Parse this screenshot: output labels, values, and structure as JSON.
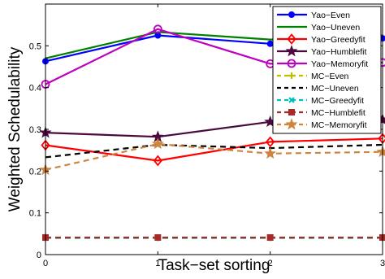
{
  "chart_data": {
    "type": "line",
    "xlabel": "Task−set sorting",
    "ylabel": "Weighted Schedulability",
    "x": [
      0,
      1,
      2,
      3
    ],
    "xlim": [
      0,
      3
    ],
    "ylim": [
      0,
      0.6
    ],
    "x_ticks": [
      "0",
      "1",
      "2",
      "3"
    ],
    "y_ticks": [
      {
        "v": 0,
        "label": "0"
      },
      {
        "v": 0.1,
        "label": "0.1"
      },
      {
        "v": 0.2,
        "label": "0.2"
      },
      {
        "v": 0.3,
        "label": "0.3"
      },
      {
        "v": 0.4,
        "label": "0.4"
      },
      {
        "v": 0.5,
        "label": "0.5"
      }
    ],
    "legend_position": "top-right",
    "grid": false,
    "series": [
      {
        "name": "Yao−Even",
        "color": "#0000ff",
        "dash": "solid",
        "marker": "dot",
        "values": [
          0.463,
          0.525,
          0.505,
          0.518
        ]
      },
      {
        "name": "Yao−Uneven",
        "color": "#008000",
        "dash": "solid",
        "marker": "none",
        "values": [
          0.47,
          0.533,
          0.515,
          0.525
        ]
      },
      {
        "name": "Yao−Greedyfit",
        "color": "#ff0000",
        "dash": "solid",
        "marker": "diamond",
        "values": [
          0.262,
          0.225,
          0.27,
          0.278
        ]
      },
      {
        "name": "Yao−Humblefit",
        "color": "#4b0a3c",
        "dash": "solid",
        "marker": "star",
        "values": [
          0.292,
          0.282,
          0.318,
          0.323
        ]
      },
      {
        "name": "Yao−Memoryfit",
        "color": "#bf00bf",
        "dash": "solid",
        "marker": "circle",
        "values": [
          0.408,
          0.54,
          0.457,
          0.46
        ]
      },
      {
        "name": "MC−Even",
        "color": "#bfbf00",
        "dash": "dashed",
        "marker": "plus",
        "values": [
          0.04,
          0.04,
          0.04,
          0.04
        ]
      },
      {
        "name": "MC−Uneven",
        "color": "#000000",
        "dash": "dashed",
        "marker": "none",
        "values": [
          0.233,
          0.263,
          0.255,
          0.263
        ]
      },
      {
        "name": "MC−Greedyfit",
        "color": "#00bfbf",
        "dash": "dashed",
        "marker": "x",
        "values": [
          0.04,
          0.04,
          0.04,
          0.04
        ]
      },
      {
        "name": "MC−Humblefit",
        "color": "#a52a2a",
        "dash": "dashed",
        "marker": "square",
        "values": [
          0.041,
          0.041,
          0.041,
          0.041
        ]
      },
      {
        "name": "MC−Memoryfit",
        "color": "#cd853f",
        "dash": "dashed",
        "marker": "star",
        "values": [
          0.203,
          0.265,
          0.242,
          0.246
        ]
      }
    ]
  }
}
